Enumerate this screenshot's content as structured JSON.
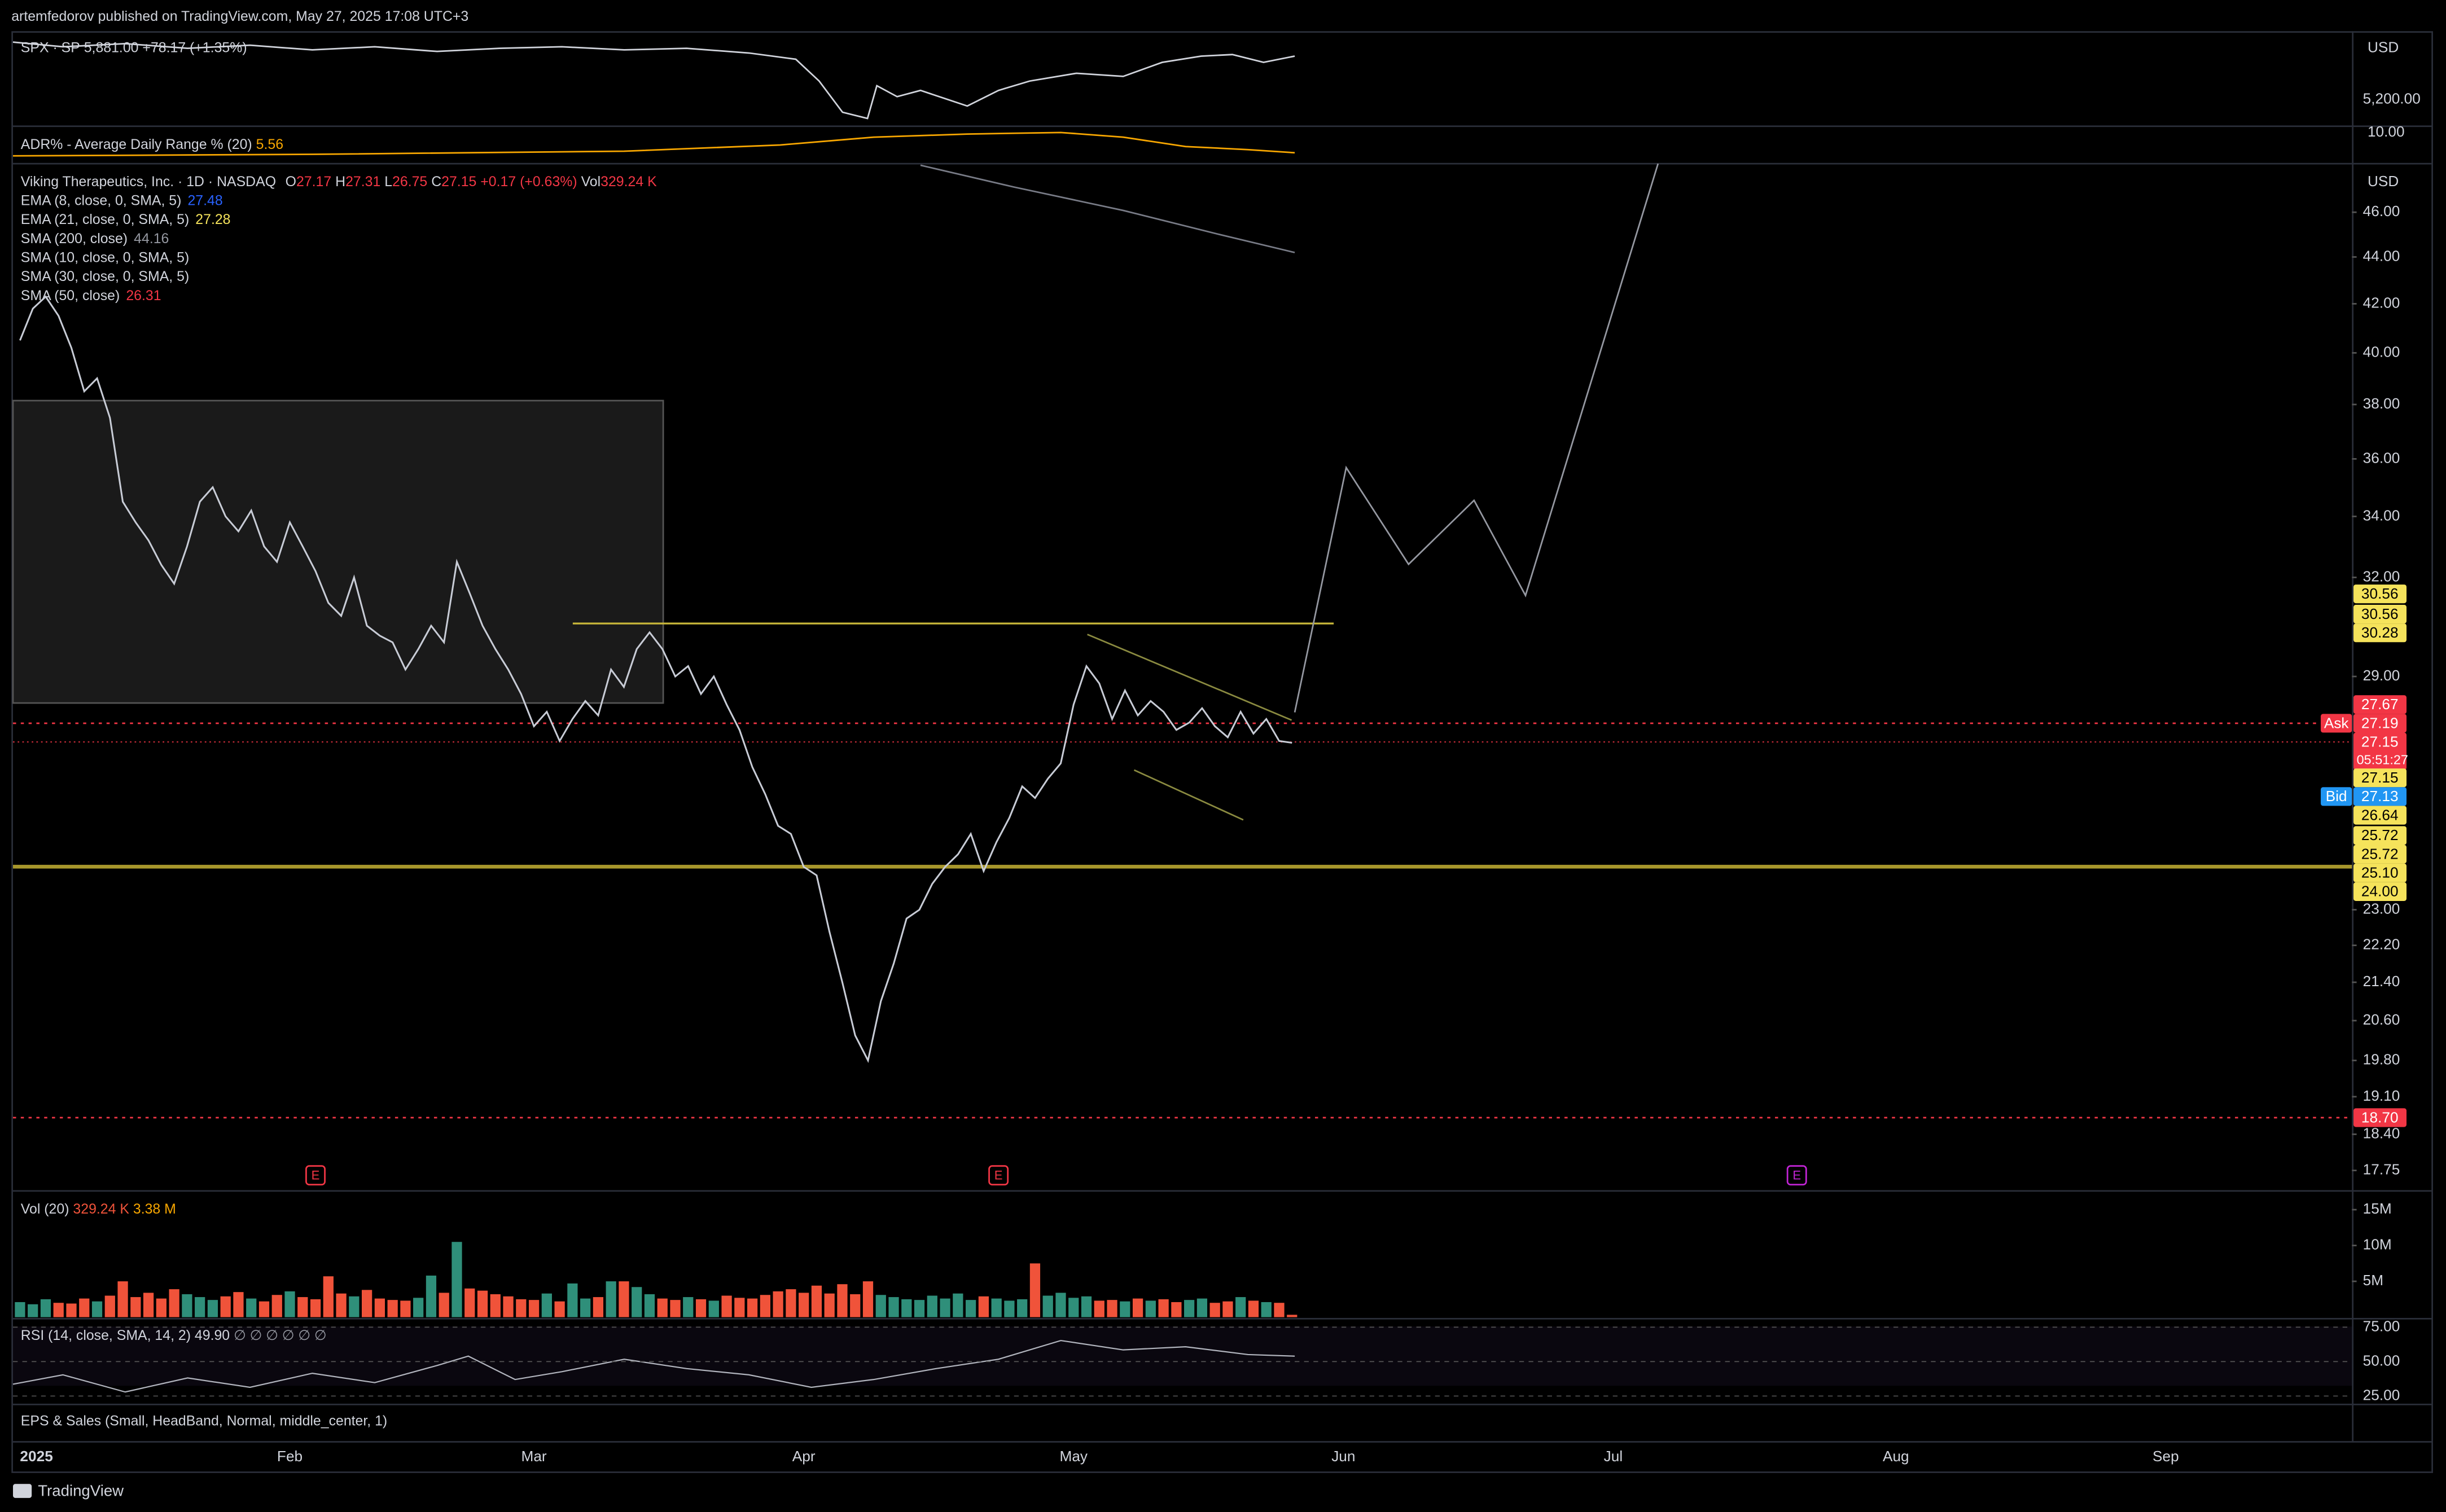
{
  "header": {
    "publisher": "artemfedorov published on TradingView.com, May 27, 2025 17:08 UTC+3"
  },
  "spx": {
    "label": "SPX · SP",
    "value": "5,881.00",
    "change": "+78.17 (+1.35%)",
    "axis_label": "5,200.00",
    "currency": "USD"
  },
  "adr": {
    "label": "ADR% - Average Daily Range % (20)",
    "value": "5.56",
    "axis_label": "10.00"
  },
  "chart_data": [
    {
      "type": "line",
      "title": "Viking Therapeutics, Inc. · 1D · NASDAQ",
      "ohlc": [
        "O",
        "27.17",
        "H",
        "27.31",
        "L",
        "26.75",
        "C",
        "27.15",
        "+0.17 (+0.63%)",
        "Vol",
        "329.24 K"
      ],
      "indicators": [
        {
          "name": "EMA (8, close, 0, SMA, 5)",
          "value": "27.48",
          "color": "#2962ff"
        },
        {
          "name": "EMA (21, close, 0, SMA, 5)",
          "value": "27.28",
          "color": "#f5e35b"
        },
        {
          "name": "SMA (200, close)",
          "value": "44.16",
          "color": "#9598a1"
        },
        {
          "name": "SMA (10, close, 0, SMA, 5)",
          "value": "",
          "color": "#9598a1"
        },
        {
          "name": "SMA (30, close, 0, SMA, 5)",
          "value": "",
          "color": "#9598a1"
        },
        {
          "name": "SMA (50, close)",
          "value": "26.31",
          "color": "#f23645"
        }
      ],
      "currency": "USD",
      "log_scale": true,
      "color": "#c8ccd6",
      "up_color": "#2f8f7a",
      "down_color": "#f0533a",
      "categories": [
        "2025",
        null,
        null,
        null,
        null,
        null,
        null,
        null,
        null,
        null,
        null,
        null,
        null,
        null,
        null,
        null,
        null,
        null,
        null,
        null,
        null,
        "Feb",
        null,
        null,
        null,
        null,
        null,
        null,
        null,
        null,
        null,
        null,
        null,
        null,
        null,
        null,
        null,
        null,
        null,
        null,
        "Mar",
        null,
        null,
        null,
        null,
        null,
        null,
        null,
        null,
        null,
        null,
        null,
        null,
        null,
        null,
        null,
        null,
        null,
        null,
        null,
        null,
        "Apr",
        null,
        null,
        null,
        null,
        null,
        null,
        null,
        null,
        null,
        null,
        null,
        null,
        null,
        null,
        null,
        null,
        null,
        null,
        null,
        null,
        "May",
        null,
        null,
        null,
        null,
        null,
        null,
        null,
        null,
        null,
        null,
        null,
        null,
        null,
        null,
        null,
        null,
        null,
        null,
        null,
        null,
        "Jun",
        null,
        null,
        null,
        null,
        null,
        null,
        null,
        null,
        null,
        null,
        null,
        null,
        null,
        null,
        null,
        null,
        null,
        null,
        null,
        null,
        "Jul",
        null,
        null,
        null,
        null,
        null,
        null,
        null,
        null,
        null,
        null,
        null,
        null,
        null,
        null,
        null,
        null,
        null,
        null,
        null,
        null,
        null,
        "Aug",
        null,
        null,
        null,
        null,
        null,
        null,
        null,
        null,
        null,
        null,
        null,
        null,
        null,
        null,
        null,
        null,
        null,
        null,
        null,
        null,
        "Sep",
        null,
        null,
        null,
        null,
        null,
        null,
        null,
        null,
        null,
        null,
        null,
        null,
        null,
        null
      ],
      "values": [
        40.5,
        41.8,
        42.3,
        41.5,
        40.2,
        38.5,
        39.0,
        37.5,
        34.5,
        33.8,
        33.2,
        32.4,
        31.8,
        33.0,
        34.5,
        35.0,
        34.0,
        33.5,
        34.2,
        33.0,
        32.5,
        33.8,
        33.0,
        32.2,
        31.2,
        30.8,
        32.0,
        30.5,
        30.2,
        30.0,
        29.2,
        29.8,
        30.5,
        30.0,
        32.5,
        31.5,
        30.5,
        29.8,
        29.2,
        28.5,
        27.6,
        28.0,
        27.2,
        27.8,
        28.3,
        27.9,
        29.2,
        28.7,
        29.8,
        30.3,
        29.8,
        29.0,
        29.3,
        28.5,
        29.0,
        28.2,
        27.5,
        26.5,
        25.8,
        25.0,
        24.8,
        24.0,
        23.8,
        22.5,
        21.4,
        20.3,
        19.8,
        21.0,
        21.8,
        22.8,
        23.0,
        23.6,
        24.0,
        24.3,
        24.8,
        23.9,
        24.6,
        25.2,
        26.0,
        25.7,
        26.2,
        26.6,
        28.2,
        29.3,
        28.8,
        27.8,
        28.6,
        27.9,
        28.3,
        28.0,
        27.5,
        27.7,
        28.1,
        27.6,
        27.3,
        28.0,
        27.4,
        27.8,
        27.2,
        27.15,
        null,
        null,
        null,
        null,
        null,
        null,
        null,
        null,
        null,
        null,
        null,
        null,
        null,
        null,
        null,
        null,
        null,
        null,
        null,
        null,
        null,
        null,
        null,
        null,
        null,
        null,
        null,
        null,
        null,
        null,
        null,
        null,
        null,
        null,
        null,
        null,
        null,
        null,
        null,
        null,
        null,
        null,
        null,
        null,
        null,
        null,
        null,
        null,
        null,
        null,
        null,
        null,
        null,
        null,
        null,
        null,
        null,
        null,
        null,
        null,
        null,
        null,
        null,
        null,
        null,
        null,
        null,
        null,
        null,
        null,
        null,
        null,
        null,
        null,
        null,
        null,
        null,
        null,
        null,
        null,
        null,
        null
      ],
      "ylim": [
        17.42,
        48.2
      ],
      "yticks": [
        {
          "value": 17.75,
          "label": "17.75"
        },
        {
          "value": 18.4,
          "label": "18.40"
        },
        {
          "value": 19.1,
          "label": "19.10"
        },
        {
          "value": 19.8,
          "label": "19.80"
        },
        {
          "value": 20.6,
          "label": "20.60"
        },
        {
          "value": 21.4,
          "label": "21.40"
        },
        {
          "value": 22.2,
          "label": "22.20"
        },
        {
          "value": 23,
          "label": "23.00"
        },
        {
          "value": 29,
          "label": "29.00"
        },
        {
          "value": 32,
          "label": "32.00"
        },
        {
          "value": 34,
          "label": "34.00"
        },
        {
          "value": 36,
          "label": "36.00"
        },
        {
          "value": 38,
          "label": "38.00"
        },
        {
          "value": 40,
          "label": "40.00"
        },
        {
          "value": 42,
          "label": "42.00"
        },
        {
          "value": 44,
          "label": "44.00"
        },
        {
          "value": 46,
          "label": "46.00"
        }
      ],
      "price_labels": [
        {
          "label": "30.56",
          "color": "#f5e35b"
        },
        {
          "label": "30.56",
          "color": "#f5e35b"
        },
        {
          "label": "30.28",
          "color": "#f5e35b"
        },
        {
          "label": "27.67",
          "color": "#f23645"
        },
        {
          "label": "27.19",
          "color": "#f23645",
          "tag": "Ask"
        },
        {
          "label": "27.15",
          "color": "#f23645",
          "sub": "05:51:27"
        },
        {
          "label": "27.15",
          "color": "#f5e35b"
        },
        {
          "label": "27.13",
          "color": "#2196f3",
          "tag": "Bid"
        },
        {
          "label": "26.64",
          "color": "#f5e35b"
        },
        {
          "label": "25.72",
          "color": "#f5e35b"
        },
        {
          "label": "25.72",
          "color": "#f5e35b"
        },
        {
          "label": "25.10",
          "color": "#f5e35b"
        },
        {
          "label": "24.00",
          "color": "#f5e35b"
        },
        {
          "label": "18.70",
          "color": "#f23645"
        }
      ]
    },
    {
      "type": "bar",
      "title": "Vol (20)",
      "legend_values": [
        "329.24 K",
        "3.38 M"
      ],
      "values": [
        2.1,
        1.8,
        2.5,
        2.0,
        1.9,
        2.6,
        2.2,
        3.0,
        5.0,
        2.8,
        3.4,
        2.6,
        3.9,
        3.2,
        2.8,
        2.4,
        2.9,
        3.5,
        2.6,
        2.2,
        3.1,
        3.6,
        2.8,
        2.5,
        5.7,
        3.3,
        2.9,
        3.8,
        2.6,
        2.4,
        2.3,
        2.7,
        5.8,
        3.4,
        10.5,
        4.0,
        3.7,
        3.2,
        2.9,
        2.5,
        2.4,
        3.3,
        2.2,
        4.7,
        2.6,
        2.8,
        5.0,
        5.0,
        4.2,
        3.2,
        2.6,
        2.4,
        2.8,
        2.5,
        2.3,
        3.0,
        2.7,
        2.6,
        3.1,
        3.6,
        3.9,
        3.4,
        4.4,
        3.3,
        4.6,
        3.2,
        5.0,
        3.1,
        2.8,
        2.5,
        2.4,
        3.0,
        2.6,
        3.3,
        2.4,
        2.9,
        2.6,
        2.3,
        2.5,
        7.5,
        3.0,
        3.4,
        2.7,
        2.9,
        2.3,
        2.4,
        2.2,
        2.6,
        2.3,
        2.5,
        2.1,
        2.4,
        2.6,
        2.0,
        2.2,
        2.8,
        2.3,
        2.1,
        2.0,
        0.33
      ],
      "ylim": [
        0,
        17.4
      ],
      "yticks": [
        {
          "value": 5,
          "label": "5M"
        },
        {
          "value": 10,
          "label": "10M"
        },
        {
          "value": 15,
          "label": "15M"
        }
      ]
    },
    {
      "type": "rsi",
      "title": "RSI (14, close, SMA, 14, 2)",
      "value": "49.90",
      "extra": "∅ ∅ ∅ ∅ ∅ ∅",
      "ylim": [
        20,
        80
      ],
      "yticks": [
        {
          "value": 25,
          "label": "25.00"
        },
        {
          "value": 50,
          "label": "50.00"
        },
        {
          "value": 75,
          "label": "75.00"
        }
      ]
    }
  ],
  "eps": {
    "title": "EPS & Sales (Small, HeadBand, Normal, middle_center, 1)",
    "markers": [
      "E",
      "E",
      "E"
    ]
  },
  "footer": {
    "brand": "TradingView"
  }
}
